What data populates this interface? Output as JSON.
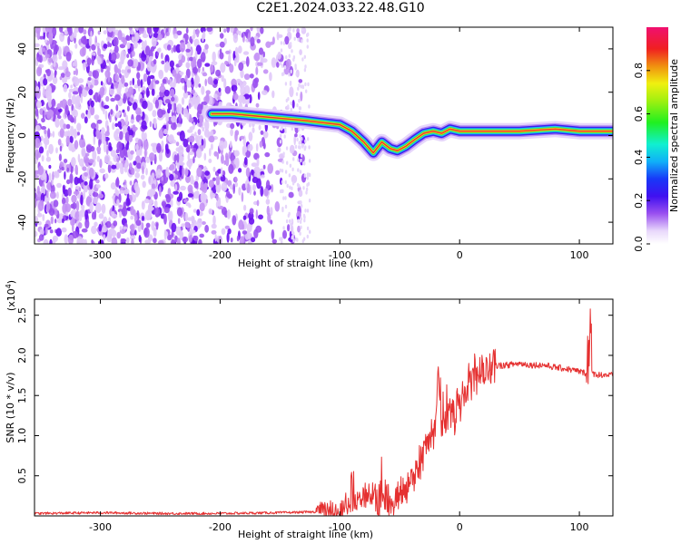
{
  "title": "C2E1.2024.033.22.48.G10",
  "chart_data": [
    {
      "type": "heatmap",
      "xlabel": "Height of straight line (km)",
      "ylabel": "Frequency (Hz)",
      "xlim": [
        -355,
        128
      ],
      "ylim": [
        -50,
        50
      ],
      "xticks": [
        -300,
        -200,
        -100,
        0,
        100
      ],
      "yticks": [
        -40,
        -20,
        0,
        20,
        40
      ],
      "colorbar": {
        "label": "Normalized spectral amplitude",
        "range": [
          0,
          1
        ],
        "ticks": [
          "0.0",
          "0.2",
          "0.4",
          "0.6",
          "0.8"
        ],
        "tick_values": [
          0,
          0.2,
          0.4,
          0.6,
          0.8
        ]
      },
      "ridge": {
        "x": [
          -207,
          -190,
          -170,
          -150,
          -130,
          -115,
          -100,
          -90,
          -80,
          -72,
          -65,
          -58,
          -52,
          -45,
          -38,
          -30,
          -22,
          -15,
          -8,
          0,
          20,
          50,
          80,
          100,
          110,
          128
        ],
        "y": [
          10,
          10,
          9,
          8,
          7,
          6,
          5,
          2,
          -3,
          -8,
          -3,
          -6,
          -7,
          -5,
          -2,
          1,
          2,
          1,
          3,
          2,
          2,
          2,
          3,
          2,
          2,
          2
        ]
      }
    },
    {
      "type": "line",
      "xlabel": "Height of straight line (km)",
      "ylabel": "SNR (10 * v/v)",
      "y_multiplier": "(x10",
      "y_multiplier_exp": "4",
      "y_multiplier_close": ")",
      "xlim": [
        -355,
        128
      ],
      "ylim": [
        0,
        2.7
      ],
      "xticks": [
        -300,
        -200,
        -100,
        0,
        100
      ],
      "yticks": [
        "0.5",
        "1.0",
        "1.5",
        "2.0",
        "2.5"
      ],
      "ytick_values": [
        0.5,
        1.0,
        1.5,
        2.0,
        2.5
      ],
      "series": [
        {
          "color": "#e53030",
          "x": [
            -355,
            -300,
            -250,
            -200,
            -150,
            -120,
            -100,
            -90,
            -80,
            -75,
            -70,
            -65,
            -60,
            -55,
            -50,
            -45,
            -40,
            -35,
            -30,
            -25,
            -20,
            -18,
            -15,
            -10,
            -5,
            0,
            5,
            10,
            15,
            20,
            25,
            30,
            40,
            50,
            60,
            70,
            80,
            90,
            100,
            105,
            107,
            108,
            110,
            115,
            120,
            128
          ],
          "y": [
            0.03,
            0.04,
            0.03,
            0.03,
            0.04,
            0.05,
            0.08,
            0.15,
            0.25,
            0.3,
            0.2,
            0.25,
            0.2,
            0.12,
            0.2,
            0.35,
            0.5,
            0.6,
            0.8,
            1.0,
            1.1,
            1.3,
            1.2,
            1.2,
            1.3,
            1.4,
            1.55,
            1.7,
            1.75,
            1.8,
            1.85,
            1.87,
            1.88,
            1.9,
            1.88,
            1.88,
            1.85,
            1.83,
            1.8,
            1.78,
            1.9,
            2.6,
            1.78,
            1.76,
            1.76,
            1.75
          ]
        }
      ]
    }
  ]
}
